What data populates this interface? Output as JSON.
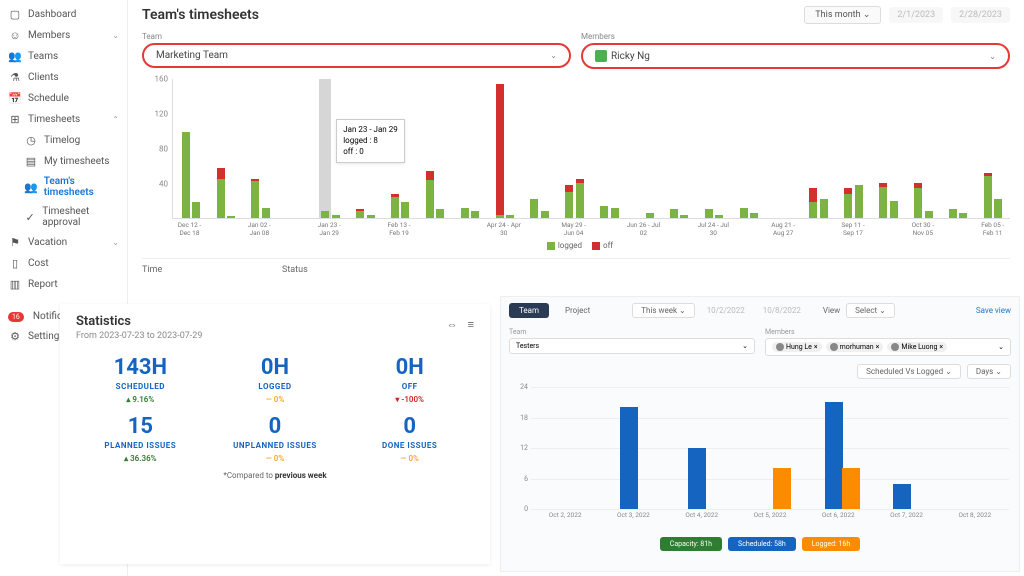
{
  "sidebar": {
    "items": [
      {
        "label": "Dashboard",
        "icon": "▢"
      },
      {
        "label": "Members",
        "icon": "☺",
        "chev": "⌄"
      },
      {
        "label": "Teams",
        "icon": "👥"
      },
      {
        "label": "Clients",
        "icon": "⚗"
      },
      {
        "label": "Schedule",
        "icon": "📅"
      },
      {
        "label": "Timesheets",
        "icon": "⊞",
        "chev": "⌃",
        "expanded": true
      },
      {
        "label": "Vacation",
        "icon": "⚑",
        "chev": "⌄"
      },
      {
        "label": "Cost",
        "icon": "▯"
      },
      {
        "label": "Report",
        "icon": "▥"
      },
      {
        "label": "Notificat",
        "icon": "",
        "badge": "16"
      },
      {
        "label": "Settings",
        "icon": "⚙"
      }
    ],
    "sub": [
      {
        "label": "Timelog",
        "icon": "◷"
      },
      {
        "label": "My timesheets",
        "icon": "▤"
      },
      {
        "label": "Team's timesheets",
        "icon": "👥",
        "active": true
      },
      {
        "label": "Timesheet approval",
        "icon": "✓"
      }
    ]
  },
  "page": {
    "title": "Team's timesheets",
    "month_select": "This month",
    "date_from": "2/1/2023",
    "date_to": "2/28/2023",
    "team_label": "Team",
    "team_value": "Marketing Team",
    "members_label": "Members",
    "members_value": "Ricky Ng"
  },
  "chart1": {
    "type": "stacked-bar",
    "ylim": [
      0,
      160
    ],
    "yticks": [
      40,
      80,
      120,
      160
    ],
    "colors": {
      "logged": "#7cb342",
      "off": "#d32f2f",
      "highlight": "#9e9e9e",
      "grid": "#eeeeee"
    },
    "legend": [
      {
        "label": "logged",
        "color": "#7cb342"
      },
      {
        "label": "off",
        "color": "#d32f2f"
      }
    ],
    "categories": [
      "Dec 12 - Dec 18",
      "",
      "Jan 02 - Jan 08",
      "",
      "Jan 23 - Jan 29",
      "",
      "Feb 13 - Feb 19",
      "",
      "",
      "Apr 24 - Apr 30",
      "",
      "May 29 - Jun 04",
      "",
      "Jun 26 - Jul 02",
      "",
      "Jul 24 - Jul 30",
      "",
      "Aug 21 - Aug 27",
      "",
      "Sep 11 - Sep 17",
      "",
      "Oct 30 - Nov 05",
      "",
      "Feb 05 - Feb 11"
    ],
    "pairs": [
      [
        98,
        0
      ],
      [
        18,
        0
      ],
      [
        45,
        12
      ],
      [
        2,
        0
      ],
      [
        42,
        3
      ],
      [
        12,
        0
      ],
      [
        0,
        0
      ],
      [
        0,
        0
      ],
      [
        8,
        0
      ],
      [
        4,
        0
      ],
      [
        8,
        2
      ],
      [
        3,
        0
      ],
      [
        24,
        3
      ],
      [
        18,
        0
      ],
      [
        44,
        10
      ],
      [
        10,
        0
      ],
      [
        12,
        0
      ],
      [
        8,
        0
      ],
      [
        3,
        150
      ],
      [
        3,
        0
      ],
      [
        22,
        0
      ],
      [
        8,
        0
      ],
      [
        30,
        8
      ],
      [
        40,
        5
      ],
      [
        14,
        0
      ],
      [
        12,
        0
      ],
      [
        0,
        0
      ],
      [
        6,
        0
      ],
      [
        10,
        0
      ],
      [
        4,
        0
      ],
      [
        10,
        0
      ],
      [
        4,
        0
      ],
      [
        12,
        0
      ],
      [
        6,
        0
      ],
      [
        0,
        0
      ],
      [
        0,
        0
      ],
      [
        18,
        16
      ],
      [
        22,
        0
      ],
      [
        28,
        6
      ],
      [
        38,
        0
      ],
      [
        36,
        4
      ],
      [
        20,
        0
      ],
      [
        34,
        6
      ],
      [
        8,
        0
      ],
      [
        10,
        0
      ],
      [
        6,
        0
      ],
      [
        48,
        4
      ],
      [
        22,
        0
      ]
    ],
    "highlight_index": 8,
    "tooltip": {
      "title": "Jan 23 - Jan 29",
      "logged_label": "logged :",
      "logged_val": "8",
      "off_label": "off :",
      "off_val": "0"
    }
  },
  "table": {
    "col1": "Time",
    "col2": "Status"
  },
  "stats": {
    "title": "Statistics",
    "subtitle": "From 2023-07-23 to 2023-07-29",
    "cards": [
      {
        "val": "143H",
        "label": "SCHEDULED",
        "change": "▴ 9.16%",
        "cls": "up"
      },
      {
        "val": "0H",
        "label": "LOGGED",
        "change": "— 0%",
        "cls": "flat"
      },
      {
        "val": "0H",
        "label": "OFF",
        "change": "▾ -100%",
        "cls": "down"
      },
      {
        "val": "15",
        "label": "PLANNED ISSUES",
        "change": "▴ 36.36%",
        "cls": "up"
      },
      {
        "val": "0",
        "label": "UNPLANNED ISSUES",
        "change": "— 0%",
        "cls": "flat"
      },
      {
        "val": "0",
        "label": "DONE ISSUES",
        "change": "— 0%",
        "cls": "flat"
      }
    ],
    "footer_pre": "*Compared to ",
    "footer_bold": "previous week"
  },
  "mini": {
    "tabs": [
      {
        "label": "Team",
        "active": true
      },
      {
        "label": "Project",
        "active": false
      }
    ],
    "week_select": "This week",
    "date_from": "10/2/2022",
    "date_to": "10/8/2022",
    "view_label": "View",
    "view_select": "Select",
    "save": "Save view",
    "team_label": "Team",
    "team_value": "Testers",
    "members_label": "Members",
    "chips": [
      {
        "name": "Hung Le"
      },
      {
        "name": "morhuman"
      },
      {
        "name": "Mike Luong"
      }
    ],
    "type_select": "Scheduled Vs Logged",
    "unit_select": "Days"
  },
  "chart2": {
    "type": "grouped-bar",
    "ylim": [
      0,
      24
    ],
    "yticks": [
      0,
      6,
      12,
      18,
      24
    ],
    "grid_color": "#eeeeee",
    "categories": [
      "Oct 2, 2022",
      "Oct 3, 2022",
      "Oct 4, 2022",
      "Oct 5, 2022",
      "Oct 6, 2022",
      "Oct 7, 2022",
      "Oct 8, 2022"
    ],
    "series": {
      "scheduled": {
        "color": "#1565c0",
        "values": [
          0,
          20,
          12,
          0,
          21,
          5,
          0
        ]
      },
      "logged": {
        "color": "#fb8c00",
        "values": [
          0,
          0,
          0,
          8,
          8,
          0,
          0
        ]
      }
    },
    "legend": [
      {
        "label": "Capacity: 81h",
        "color": "#2e7d32"
      },
      {
        "label": "Scheduled: 58h",
        "color": "#1565c0"
      },
      {
        "label": "Logged: 16h",
        "color": "#fb8c00"
      }
    ]
  }
}
